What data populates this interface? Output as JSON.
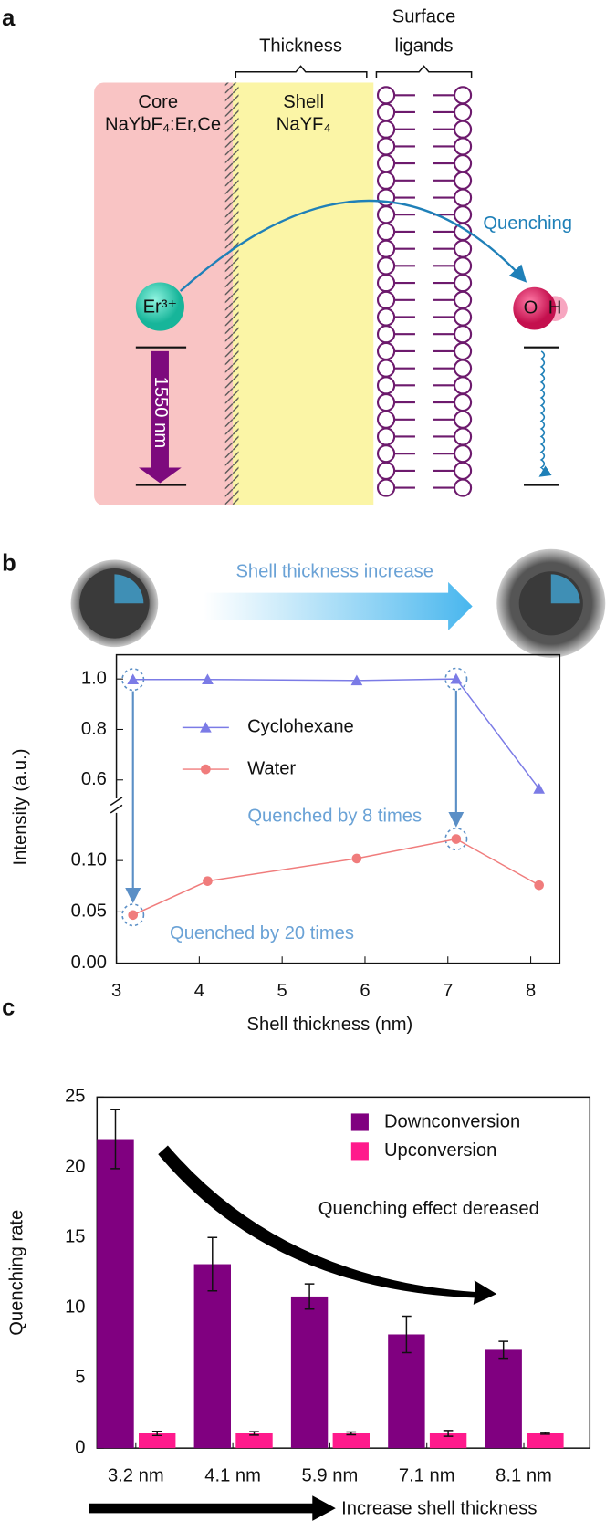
{
  "panel_labels": [
    "a",
    "b",
    "c"
  ],
  "diagram": {
    "thickness": "Thickness",
    "surface_ligands": [
      "Surface",
      "ligands"
    ],
    "core": [
      "Core",
      "NaYbF₄:Er,Ce"
    ],
    "shell": [
      "Shell",
      "NaYF₄"
    ],
    "quenching": "Quenching",
    "ion": "Er³⁺",
    "emission": "1550 nm",
    "hydroxyl": [
      "O",
      "H"
    ]
  },
  "chart_data": [
    {
      "type": "line",
      "banner": "Shell thickness increase",
      "xlabel": "Shell thickness (nm)",
      "ylabel": "Intensity (a.u.)",
      "x": [
        3.2,
        4.1,
        5.9,
        7.1,
        8.1
      ],
      "xlim": [
        3,
        8.35
      ],
      "xticks": [
        3,
        4,
        5,
        6,
        7,
        8
      ],
      "y_segments": [
        {
          "ylim": [
            0,
            0.154
          ],
          "yticks": [
            {
              "value": 0,
              "label": "0.00"
            },
            0.05,
            {
              "value": 0.1,
              "label": "0.10"
            }
          ]
        },
        {
          "ylim": [
            0.527,
            1.096
          ],
          "yticks": [
            0.6,
            0.8,
            {
              "value": 1,
              "label": "1.0"
            }
          ]
        }
      ],
      "series": [
        {
          "name": "Cyclohexane",
          "color": "#7b7be6",
          "marker": "triangle",
          "values": [
            0.998,
            0.998,
            0.994,
            1.0,
            0.565
          ]
        },
        {
          "name": "Water",
          "color": "#f07c7c",
          "marker": "circle",
          "values": [
            0.047,
            0.08,
            0.102,
            0.121,
            0.076
          ]
        }
      ],
      "annotations": [
        "Quenched by 8 times",
        "Quenched by 20 times"
      ]
    },
    {
      "type": "bar",
      "ylabel": "Quenching rate",
      "categories": [
        "3.2 nm",
        "4.1 nm",
        "5.9 nm",
        "7.1 nm",
        "8.1 nm"
      ],
      "ylim": [
        0,
        25
      ],
      "yticks": [
        0,
        5,
        10,
        15,
        20,
        25
      ],
      "series": [
        {
          "name": "Downconversion",
          "color": "#800080",
          "values": [
            22.0,
            13.1,
            10.8,
            8.1,
            7.0
          ],
          "errors": [
            2.1,
            1.9,
            0.9,
            1.3,
            0.6
          ]
        },
        {
          "name": "Upconversion",
          "color": "#ff1a8c",
          "values": [
            1.05,
            1.05,
            1.05,
            1.05,
            1.05
          ],
          "errors": [
            0.15,
            0.12,
            0.1,
            0.2,
            0.06
          ]
        }
      ],
      "annotations": [
        "Quenching effect dereased",
        "Increase shell thickness"
      ]
    }
  ]
}
